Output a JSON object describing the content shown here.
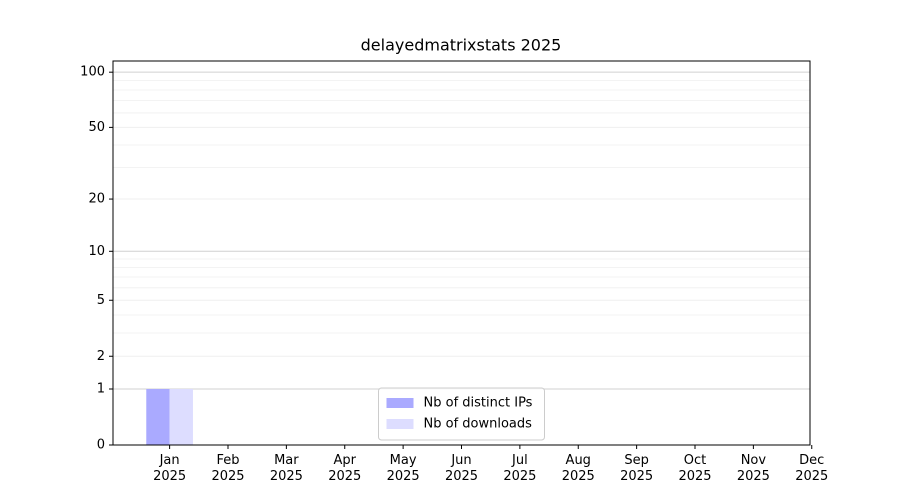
{
  "chart_data": {
    "type": "bar",
    "title": "delayedmatrixstats 2025",
    "categories": [
      "Jan\n2025",
      "Feb\n2025",
      "Mar\n2025",
      "Apr\n2025",
      "May\n2025",
      "Jun\n2025",
      "Jul\n2025",
      "Aug\n2025",
      "Sep\n2025",
      "Oct\n2025",
      "Nov\n2025",
      "Dec\n2025"
    ],
    "series": [
      {
        "name": "Nb of distinct IPs",
        "color": "#aaaaff",
        "values": [
          1,
          0,
          0,
          0,
          0,
          0,
          0,
          0,
          0,
          0,
          0,
          0
        ]
      },
      {
        "name": "Nb of downloads",
        "color": "#ddddff",
        "values": [
          1,
          0,
          0,
          0,
          0,
          0,
          0,
          0,
          0,
          0,
          0,
          0
        ]
      }
    ],
    "yscale": "log1p",
    "ylim": [
      0,
      115
    ],
    "yticks": [
      0,
      1,
      2,
      5,
      10,
      20,
      50,
      100
    ],
    "yminorticks": [
      3,
      4,
      6,
      7,
      8,
      9,
      30,
      40,
      60,
      70,
      80,
      90
    ],
    "grid": true,
    "legend": "lower center"
  }
}
